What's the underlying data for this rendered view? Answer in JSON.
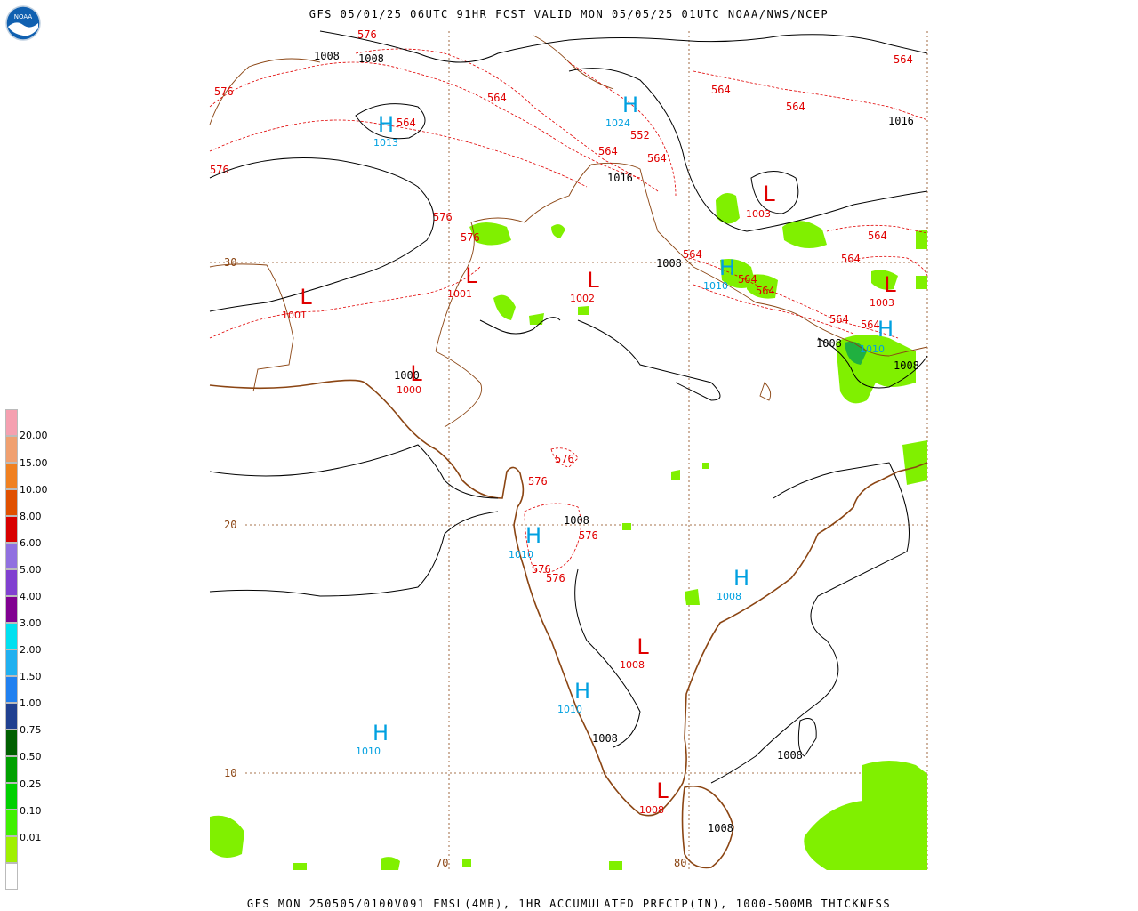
{
  "header": {
    "title": "GFS 05/01/25 06UTC 91HR FCST VALID MON 05/05/25 01UTC NOAA/NWS/NCEP",
    "footer": "GFS MON 250505/0100V091 EMSL(4MB), 1HR ACCUMULATED PRECIP(IN), 1000-500MB THICKNESS",
    "logo_text": "NOAA"
  },
  "legend": {
    "labels": [
      "20.00",
      "15.00",
      "10.00",
      "8.00",
      "6.00",
      "5.00",
      "4.00",
      "3.00",
      "2.00",
      "1.50",
      "1.00",
      "0.75",
      "0.50",
      "0.25",
      "0.10",
      "0.01"
    ],
    "colors": [
      "#f5a0b0",
      "#f0a070",
      "#f08020",
      "#e05000",
      "#d80000",
      "#c00000",
      "#9070e0",
      "#8040d0",
      "#800090",
      "#00e0f0",
      "#20b0f0",
      "#2080f0",
      "#204090",
      "#006000",
      "#00a000",
      "#00d000",
      "#40f000",
      "#a0f000",
      "#ffffff"
    ]
  },
  "grid": {
    "lat_labels": [
      "30",
      "20",
      "10"
    ],
    "lon_labels": [
      "70",
      "80"
    ]
  },
  "pressure_centers": [
    {
      "type": "H",
      "value": "1013",
      "color": "#00a0e0"
    },
    {
      "type": "H",
      "value": "1024",
      "color": "#00a0e0"
    },
    {
      "type": "L",
      "value": "1003",
      "color": "#e00000"
    },
    {
      "type": "H",
      "value": "1010",
      "color": "#00a0e0"
    },
    {
      "type": "L",
      "value": "1003",
      "color": "#e00000"
    },
    {
      "type": "L",
      "value": "1001",
      "color": "#e00000"
    },
    {
      "type": "L",
      "value": "1001",
      "color": "#e00000"
    },
    {
      "type": "L",
      "value": "1002",
      "color": "#e00000"
    },
    {
      "type": "H",
      "value": "1010",
      "color": "#00a0e0"
    },
    {
      "type": "L",
      "value": "1000",
      "color": "#e00000"
    },
    {
      "type": "H",
      "value": "1010",
      "color": "#00a0e0"
    },
    {
      "type": "H",
      "value": "1008",
      "color": "#00a0e0"
    },
    {
      "type": "L",
      "value": "1008",
      "color": "#e00000"
    },
    {
      "type": "H",
      "value": "1010",
      "color": "#00a0e0"
    },
    {
      "type": "H",
      "value": "1010",
      "color": "#00a0e0"
    },
    {
      "type": "L",
      "value": "1008",
      "color": "#e00000"
    }
  ],
  "isobar_labels": [
    "1008",
    "1008",
    "1016",
    "1016",
    "1008",
    "1008",
    "1008",
    "1000",
    "1008",
    "1008",
    "1008",
    "1008"
  ],
  "thickness_labels": [
    "576",
    "564",
    "576",
    "564",
    "564",
    "576",
    "564",
    "552",
    "564",
    "564",
    "564",
    "576",
    "576",
    "564",
    "564",
    "564",
    "564",
    "564",
    "564",
    "564",
    "576",
    "576",
    "576",
    "576",
    "576"
  ]
}
